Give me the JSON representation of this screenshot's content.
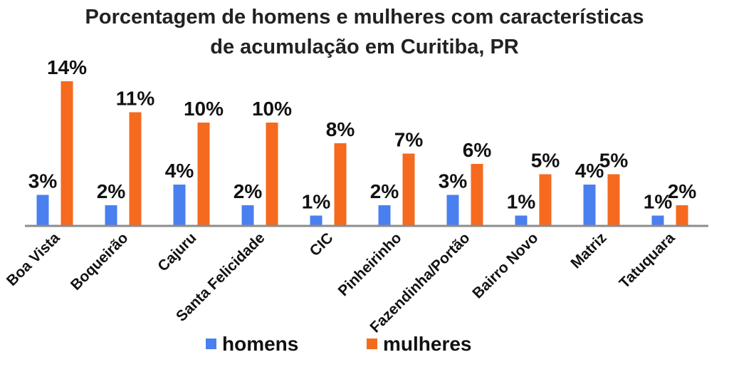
{
  "chart_data": {
    "type": "bar",
    "title": "Porcentagem de homens e mulheres com características",
    "subtitle": "de acumulação em Curitiba, PR",
    "xlabel": "",
    "ylabel": "",
    "ylim": [
      0,
      15
    ],
    "grid": false,
    "legend_position": "bottom",
    "value_suffix": "%",
    "categories": [
      "Boa Vista",
      "Boqueirão",
      "Cajuru",
      "Santa Felicidade",
      "CIC",
      "Pinheirinho",
      "Fazendinha/Portão",
      "Bairro Novo",
      "Matriz",
      "Tatuquara"
    ],
    "series": [
      {
        "name": "homens",
        "color": "#4a7ff0",
        "values": [
          3,
          2,
          4,
          2,
          1,
          2,
          3,
          1,
          4,
          1
        ]
      },
      {
        "name": "mulheres",
        "color": "#f56a1e",
        "values": [
          14,
          11,
          10,
          10,
          8,
          7,
          6,
          5,
          5,
          2
        ]
      }
    ]
  }
}
